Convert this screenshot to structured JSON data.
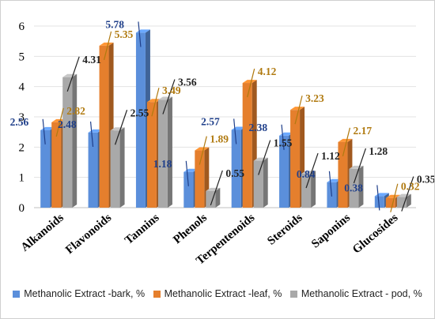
{
  "chart_data": {
    "type": "bar",
    "categories": [
      "Alkanoids",
      "Flavonoids",
      "Tannins",
      "Phenols",
      "Terpentenoids",
      "Steroids",
      "Saponins",
      "Glucosides"
    ],
    "series": [
      {
        "name": "Methanolic Extract -bark, %",
        "values": [
          2.56,
          2.48,
          5.78,
          1.18,
          2.57,
          2.38,
          0.84,
          0.38
        ],
        "color": "#5b8fdb",
        "label_color": "#1f3f8a"
      },
      {
        "name": "Methanolic Extract -leaf, %",
        "values": [
          2.82,
          5.35,
          3.49,
          1.89,
          4.12,
          3.23,
          2.17,
          0.32
        ],
        "color": "#e57f2d",
        "label_color": "#b07a10"
      },
      {
        "name": "Methanolic Extract - pod, %",
        "values": [
          4.31,
          2.55,
          3.56,
          0.55,
          1.55,
          1.12,
          1.28,
          0.35
        ],
        "color": "#a9a9a9",
        "label_color": "#222222"
      }
    ],
    "value_labels": [
      [
        "2.56",
        "2.48",
        "5.78",
        "1.18",
        "2.57",
        "2.38",
        "0.84",
        "0.38"
      ],
      [
        "2.82",
        "5.35",
        "3.49",
        "1.89",
        "4.12",
        "3.23",
        "2.17",
        "0.32"
      ],
      [
        "4.31",
        "2.55",
        "3.56",
        "0.55",
        "1.55",
        "1.12",
        "1.28",
        "0.35"
      ]
    ],
    "y_ticks": [
      "0",
      "1",
      "2",
      "3",
      "4",
      "5",
      "6"
    ],
    "ylim": [
      0,
      6
    ],
    "grid": true,
    "legend_position": "bottom",
    "title": "",
    "xlabel": "",
    "ylabel": ""
  }
}
